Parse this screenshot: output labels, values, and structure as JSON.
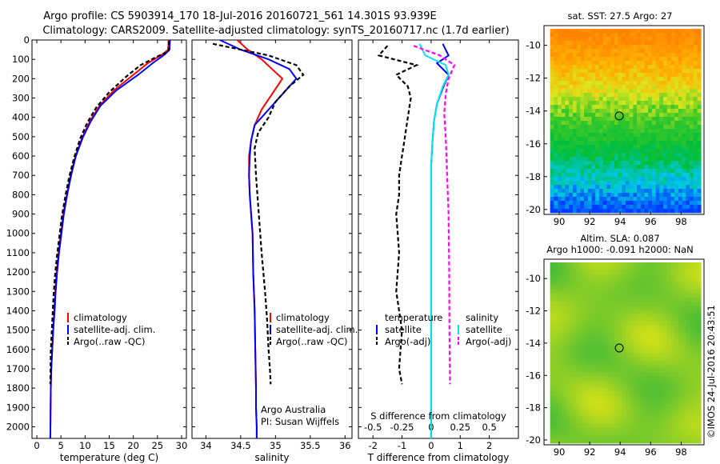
{
  "header": {
    "line1": "Argo profile: CS 5903914_170 18-Jul-2016 20160721_561 14.301S 93.939E",
    "line2": "Climatology: CARS2009. Satellite-adjusted climatology: synTS_20160717.nc (1.7d earlier)"
  },
  "colors": {
    "climatology": "#ff0000",
    "satellite": "#0000ff",
    "argo": "#000000",
    "magenta": "#ff00ff",
    "cyan": "#00e5ee"
  },
  "depth_ticks": [
    0,
    100,
    200,
    300,
    400,
    500,
    600,
    700,
    800,
    900,
    1000,
    1100,
    1200,
    1300,
    1400,
    1500,
    1600,
    1700,
    1800,
    1900,
    2000
  ],
  "legend_ts": {
    "climatology": "climatology",
    "satellite": "satellite-adj. clim.",
    "argo": "Argo(..raw -QC)"
  },
  "legend_diff": {
    "temperature": "temperature",
    "salinity": "salinity",
    "satellite": "satellite",
    "argo": "Argo(-adj)"
  },
  "salinity_note": {
    "line1": "Argo Australia",
    "line2": "PI: Susan Wijffels"
  },
  "diff_xlabel2": "S difference from climatology",
  "sst_title": "sat. SST: 27.5 Argo: 27",
  "sla_title1": "Altim. SLA: 0.087",
  "sla_title2": "Argo h1000: -0.091 h2000: NaN",
  "credit": "©IMOS 24-Jul-2016 20:43:51",
  "chart_data": [
    {
      "type": "line",
      "xlabel": "temperature (deg C)",
      "xlim": [
        -1,
        31
      ],
      "ylim": [
        2060,
        0
      ],
      "xticks": [
        0,
        5,
        10,
        15,
        20,
        25,
        30
      ],
      "series": [
        {
          "name": "climatology",
          "x": [
            27.3,
            27.2,
            26,
            23,
            20,
            16,
            13,
            11,
            9.5,
            8,
            7,
            6.2,
            5.5,
            5,
            4.5,
            4.1,
            3.8,
            3.6,
            3.4,
            3.2,
            3,
            2.9,
            2.8
          ],
          "depth": [
            0,
            50,
            75,
            120,
            180,
            260,
            340,
            420,
            500,
            600,
            700,
            800,
            900,
            1000,
            1100,
            1200,
            1300,
            1400,
            1500,
            1600,
            1700,
            1800,
            2060
          ]
        },
        {
          "name": "satellite-adj. clim.",
          "x": [
            27.6,
            27.5,
            26.5,
            24,
            21,
            16.5,
            13.2,
            11.2,
            9.6,
            8.1,
            7.1,
            6.3,
            5.6,
            5.1,
            4.6,
            4.2,
            3.9,
            3.7,
            3.4,
            3.2,
            3,
            2.9,
            2.8
          ],
          "depth": [
            0,
            50,
            75,
            120,
            180,
            260,
            340,
            420,
            500,
            600,
            700,
            800,
            900,
            1000,
            1100,
            1200,
            1300,
            1400,
            1500,
            1600,
            1700,
            1800,
            2060
          ]
        },
        {
          "name": "Argo(..raw -QC)",
          "x": [
            27.4,
            27.3,
            25,
            21.5,
            18.5,
            15,
            12.3,
            10.4,
            9,
            7.7,
            6.7,
            5.9,
            5.2,
            4.7,
            4.2,
            3.8,
            3.5,
            3.3,
            3.1,
            2.9,
            2.8
          ],
          "depth": [
            5,
            60,
            85,
            130,
            190,
            270,
            350,
            430,
            510,
            610,
            710,
            810,
            910,
            1010,
            1110,
            1210,
            1310,
            1410,
            1510,
            1610,
            1780
          ]
        }
      ]
    },
    {
      "type": "line",
      "xlabel": "salinity",
      "xlim": [
        33.8,
        36.1
      ],
      "ylim": [
        2060,
        0
      ],
      "xticks": [
        34,
        34.5,
        35,
        35.5,
        36
      ],
      "series": [
        {
          "name": "climatology",
          "x": [
            34.45,
            34.6,
            34.8,
            34.95,
            35.1,
            34.95,
            34.8,
            34.7,
            34.65,
            34.62,
            34.62,
            34.63,
            34.65,
            34.67,
            34.68,
            34.7,
            34.71,
            34.72,
            34.72,
            34.73,
            34.73
          ],
          "depth": [
            0,
            50,
            100,
            150,
            200,
            280,
            360,
            440,
            520,
            600,
            700,
            800,
            900,
            1000,
            1200,
            1400,
            1600,
            1800,
            1900,
            2000,
            2060
          ]
        },
        {
          "name": "satellite-adj. clim.",
          "x": [
            34.2,
            34.5,
            34.9,
            35.2,
            35.3,
            35.1,
            34.9,
            34.7,
            34.65,
            34.63,
            34.62,
            34.63,
            34.65,
            34.67,
            34.68,
            34.7,
            34.71,
            34.72,
            34.72,
            34.73,
            34.73
          ],
          "depth": [
            0,
            50,
            100,
            150,
            200,
            280,
            360,
            440,
            520,
            600,
            700,
            800,
            900,
            1000,
            1200,
            1400,
            1600,
            1800,
            1900,
            2000,
            2060
          ]
        },
        {
          "name": "Argo(..raw -QC)",
          "x": [
            34.1,
            34.9,
            35.3,
            35.4,
            35.2,
            35.0,
            34.9,
            34.75,
            34.7,
            34.72,
            34.76,
            34.8,
            34.85,
            34.88,
            34.9,
            34.92,
            34.93
          ],
          "depth": [
            20,
            80,
            130,
            180,
            240,
            320,
            400,
            480,
            560,
            700,
            900,
            1100,
            1300,
            1450,
            1600,
            1700,
            1780
          ]
        }
      ]
    },
    {
      "type": "line",
      "xlabel": "T difference from climatology",
      "xlim": [
        -2.5,
        3
      ],
      "ylim": [
        2060,
        0
      ],
      "xticks": [
        -2,
        -1,
        0,
        1,
        2
      ],
      "x2ticks": [
        -0.5,
        -0.25,
        0,
        0.25,
        0.5
      ],
      "series": [
        {
          "name": "temperature satellite",
          "x": [
            0.4,
            0.6,
            0.2,
            0.6,
            0.4,
            0.2,
            0.1,
            0.05,
            0,
            0,
            0,
            0,
            0,
            0,
            0
          ],
          "depth": [
            20,
            80,
            120,
            180,
            250,
            330,
            420,
            520,
            650,
            800,
            1000,
            1200,
            1500,
            1800,
            2060
          ]
        },
        {
          "name": "temperature Argo(-adj)",
          "x": [
            -1.5,
            -1.8,
            -0.5,
            -1.2,
            -0.8,
            -0.7,
            -0.8,
            -0.9,
            -1.0,
            -1.1,
            -1.1,
            -1.2,
            -1.1,
            -1.2,
            -1.0,
            -1.1,
            -1.0
          ],
          "depth": [
            30,
            80,
            130,
            180,
            240,
            300,
            400,
            500,
            600,
            700,
            800,
            900,
            1100,
            1300,
            1500,
            1700,
            1780
          ]
        },
        {
          "name": "salinity satellite",
          "x": [
            -0.4,
            -0.2,
            0.5,
            0.6,
            0.4,
            0.2,
            0.1,
            0.05,
            0,
            0,
            0,
            0
          ],
          "depth": [
            20,
            80,
            130,
            180,
            240,
            330,
            420,
            520,
            650,
            900,
            1400,
            2060
          ]
        },
        {
          "name": "salinity Argo(-adj)",
          "x": [
            -0.6,
            0.3,
            0.8,
            0.6,
            0.5,
            0.45,
            0.5,
            0.55,
            0.6,
            0.62,
            0.63,
            0.65
          ],
          "depth": [
            30,
            80,
            130,
            200,
            280,
            380,
            500,
            700,
            900,
            1200,
            1500,
            1780
          ]
        }
      ]
    }
  ],
  "maps": [
    {
      "name": "sst",
      "xlim": [
        89,
        99.5
      ],
      "ylim": [
        -20.3,
        -8.8
      ],
      "xticks": [
        90,
        92,
        94,
        96,
        98
      ],
      "yticks": [
        -10,
        -12,
        -14,
        -16,
        -18,
        -20
      ],
      "marker": {
        "lon": 93.939,
        "lat": -14.301
      }
    },
    {
      "name": "sla",
      "xlim": [
        89,
        99.5
      ],
      "ylim": [
        -20.3,
        -8.8
      ],
      "xticks": [
        90,
        92,
        94,
        96,
        98
      ],
      "yticks": [
        -10,
        -12,
        -14,
        -16,
        -18,
        -20
      ],
      "marker": {
        "lon": 93.939,
        "lat": -14.301
      }
    }
  ]
}
